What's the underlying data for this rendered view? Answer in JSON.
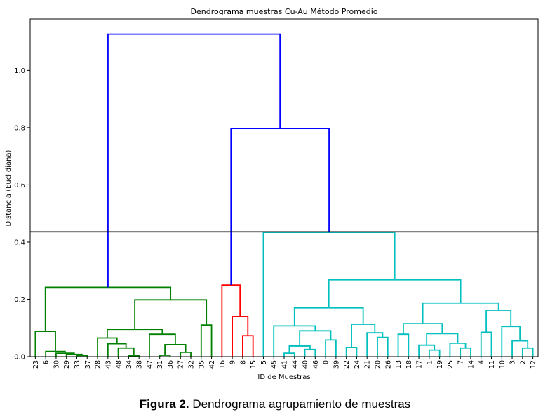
{
  "chart_data": {
    "type": "dendrogram",
    "title": "Dendrograma muestras Cu-Au Método Promedio",
    "xlabel": "ID de Muestras",
    "ylabel": "Distancia (Euclidiana)",
    "ylim": [
      0,
      1.18
    ],
    "yticks": [
      "0.0",
      "0.2",
      "0.4",
      "0.6",
      "0.8",
      "1.0"
    ],
    "cut_line": 0.436,
    "colors": {
      "above_cut": "#0000ff",
      "cluster_1": "#008000",
      "cluster_2": "#ff0000",
      "cluster_3": "#00bfbf",
      "cut_line": "#000000"
    },
    "leaf_order": [
      "23",
      "6",
      "30",
      "29",
      "33",
      "37",
      "28",
      "43",
      "48",
      "34",
      "38",
      "47",
      "31",
      "36",
      "27",
      "32",
      "35",
      "42",
      "16",
      "9",
      "8",
      "15",
      "5",
      "45",
      "41",
      "44",
      "40",
      "46",
      "0",
      "39",
      "22",
      "24",
      "21",
      "20",
      "26",
      "13",
      "18",
      "17",
      "1",
      "19",
      "25",
      "7",
      "14",
      "4",
      "11",
      "10",
      "3",
      "2",
      "12"
    ],
    "tree": {
      "h": 1.127,
      "color": "#0000ff",
      "c": [
        {
          "h": 0.242,
          "color": "#008000",
          "c": [
            {
              "h": 0.088,
              "c": [
                "23",
                {
                  "h": 0.018,
                  "c": [
                    "6",
                    {
                      "h": 0.012,
                      "c": [
                        "30",
                        {
                          "h": 0.008,
                          "c": [
                            "29",
                            {
                              "h": 0.004,
                              "c": [
                                "33",
                                "37"
                              ]
                            }
                          ]
                        }
                      ]
                    }
                  ]
                }
              ]
            },
            {
              "h": 0.198,
              "c": [
                {
                  "h": 0.095,
                  "c": [
                    {
                      "h": 0.065,
                      "c": [
                        "28",
                        {
                          "h": 0.045,
                          "c": [
                            "43",
                            {
                              "h": 0.03,
                              "c": [
                                "48",
                                {
                                  "h": 0.003,
                                  "c": [
                                    "34",
                                    "38"
                                  ]
                                }
                              ]
                            }
                          ]
                        }
                      ]
                    },
                    {
                      "h": 0.078,
                      "c": [
                        "47",
                        {
                          "h": 0.042,
                          "c": [
                            {
                              "h": 0.005,
                              "c": [
                                "31",
                                "36"
                              ]
                            },
                            {
                              "h": 0.015,
                              "c": [
                                "27",
                                "32"
                              ]
                            }
                          ]
                        }
                      ]
                    }
                  ]
                },
                {
                  "h": 0.11,
                  "c": [
                    "35",
                    "42"
                  ]
                }
              ]
            }
          ]
        },
        {
          "h": 0.797,
          "color": "#0000ff",
          "c": [
            {
              "h": 0.25,
              "color": "#ff0000",
              "c": [
                "16",
                {
                  "h": 0.14,
                  "c": [
                    "9",
                    {
                      "h": 0.073,
                      "c": [
                        "8",
                        "15"
                      ]
                    }
                  ]
                }
              ]
            },
            {
              "h": 0.434,
              "color": "#00bfbf",
              "c": [
                "5",
                {
                  "h": 0.268,
                  "c": [
                    {
                      "h": 0.17,
                      "c": [
                        {
                          "h": 0.107,
                          "c": [
                            "45",
                            {
                              "h": 0.09,
                              "c": [
                                {
                                  "h": 0.037,
                                  "c": [
                                    {
                                      "h": 0.012,
                                      "c": [
                                        "41",
                                        "44"
                                      ]
                                    },
                                    {
                                      "h": 0.025,
                                      "c": [
                                        "40",
                                        "46"
                                      ]
                                    }
                                  ]
                                },
                                {
                                  "h": 0.058,
                                  "c": [
                                    "0",
                                    "39"
                                  ]
                                }
                              ]
                            }
                          ]
                        },
                        {
                          "h": 0.113,
                          "c": [
                            {
                              "h": 0.032,
                              "c": [
                                "22",
                                "24"
                              ]
                            },
                            {
                              "h": 0.083,
                              "c": [
                                "21",
                                {
                                  "h": 0.067,
                                  "c": [
                                    "20",
                                    "26"
                                  ]
                                }
                              ]
                            }
                          ]
                        }
                      ]
                    },
                    {
                      "h": 0.187,
                      "c": [
                        {
                          "h": 0.115,
                          "c": [
                            {
                              "h": 0.078,
                              "c": [
                                "13",
                                "18"
                              ]
                            },
                            {
                              "h": 0.08,
                              "c": [
                                {
                                  "h": 0.04,
                                  "c": [
                                    "17",
                                    {
                                      "h": 0.023,
                                      "c": [
                                        "1",
                                        "19"
                                      ]
                                    }
                                  ]
                                },
                                {
                                  "h": 0.047,
                                  "c": [
                                    "25",
                                    {
                                      "h": 0.03,
                                      "c": [
                                        "7",
                                        "14"
                                      ]
                                    }
                                  ]
                                }
                              ]
                            }
                          ]
                        },
                        {
                          "h": 0.162,
                          "c": [
                            {
                              "h": 0.085,
                              "c": [
                                "4",
                                "11"
                              ]
                            },
                            {
                              "h": 0.105,
                              "c": [
                                "10",
                                {
                                  "h": 0.055,
                                  "c": [
                                    "3",
                                    {
                                      "h": 0.03,
                                      "c": [
                                        "2",
                                        "12"
                                      ]
                                    }
                                  ]
                                }
                              ]
                            }
                          ]
                        }
                      ]
                    }
                  ]
                }
              ]
            }
          ]
        }
      ]
    }
  },
  "caption": {
    "label": "Figura 2.",
    "text": " Dendrograma agrupamiento de muestras"
  }
}
